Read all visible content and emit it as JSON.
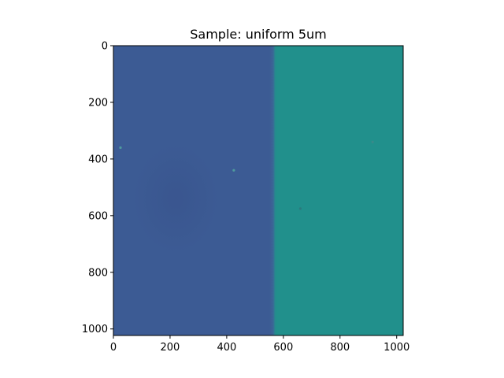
{
  "chart_data": {
    "type": "heatmap",
    "title": "Sample: uniform 5um",
    "xlabel": "",
    "ylabel": "",
    "xlim": [
      0,
      1023
    ],
    "ylim": [
      1023,
      0
    ],
    "x_ticks": [
      0,
      200,
      400,
      600,
      800,
      1000
    ],
    "y_ticks": [
      0,
      200,
      400,
      600,
      800,
      1000
    ],
    "grid": false,
    "colormap": "viridis",
    "regions": [
      {
        "x_range": [
          0,
          565
        ],
        "y_range": [
          0,
          1023
        ],
        "color": "#3c5b94"
      },
      {
        "x_range": [
          565,
          1023
        ],
        "y_range": [
          0,
          1023
        ],
        "color": "#21908c"
      }
    ],
    "boundary_x": 565,
    "features": [
      {
        "x": 25,
        "y": 360,
        "color": "#4f9a9e"
      },
      {
        "x": 425,
        "y": 440,
        "color": "#4f9a9e"
      },
      {
        "x": 660,
        "y": 575,
        "color": "#2a7a7e"
      },
      {
        "x": 915,
        "y": 340,
        "color": "#3a8a8a"
      }
    ]
  }
}
